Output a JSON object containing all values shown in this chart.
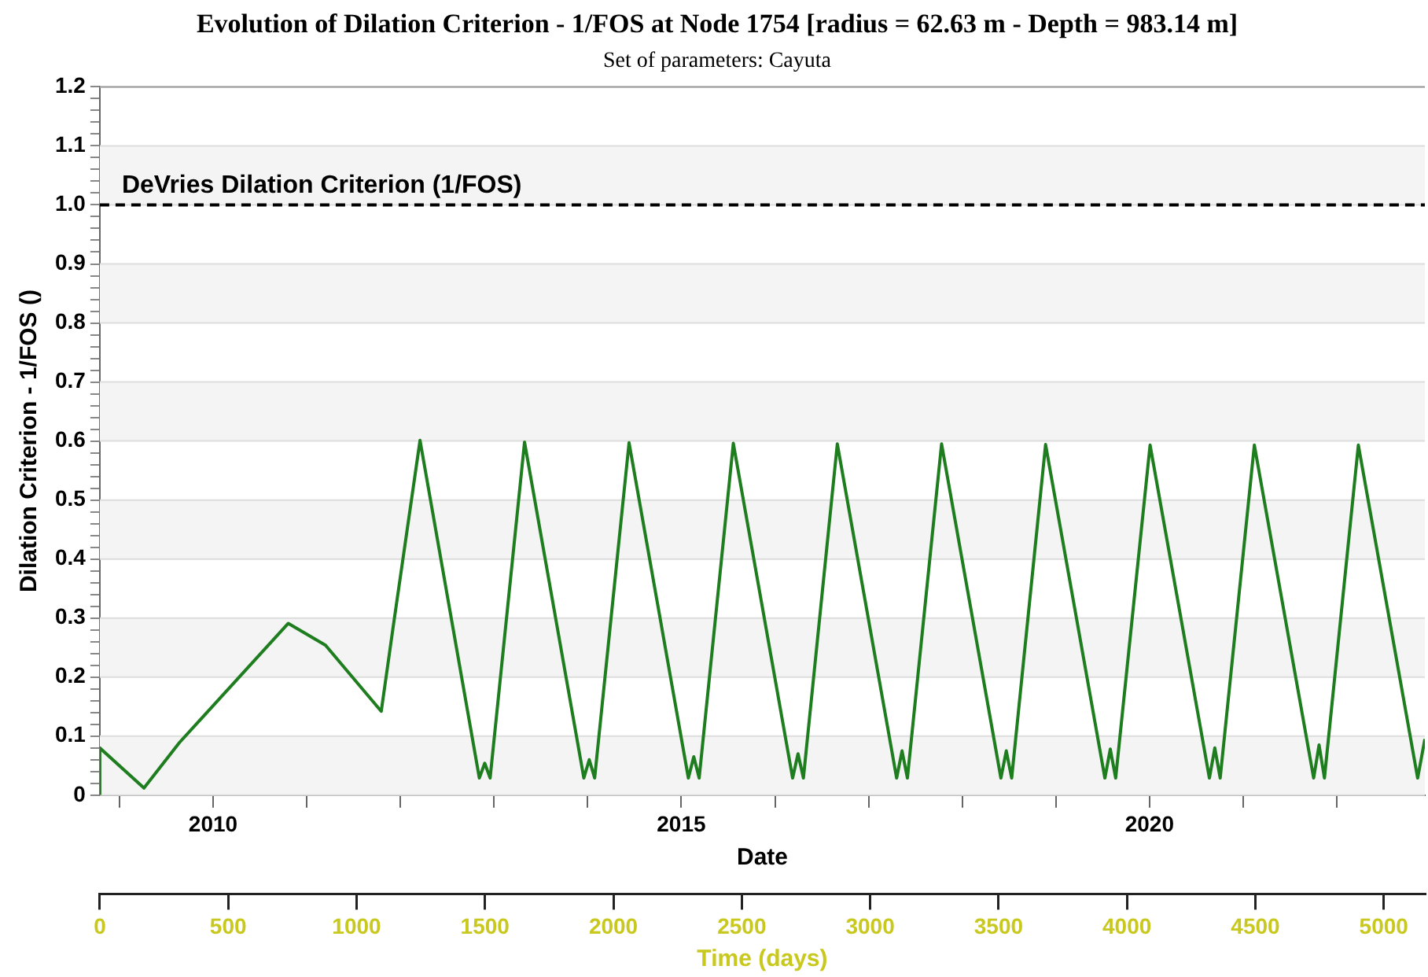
{
  "chart_data": {
    "type": "line",
    "title": "Evolution of Dilation Criterion - 1/FOS at Node 1754 [radius = 62.63 m - Depth = 983.14 m]",
    "subtitle": "Set of parameters: Cayuta",
    "ylabel": "Dilation Criterion - 1/FOS ()",
    "xlabel": "Time (days)",
    "x2label": "Date",
    "xlim": [
      0,
      5160
    ],
    "xticks": [
      0,
      500,
      1000,
      1500,
      2000,
      2500,
      3000,
      3500,
      4000,
      4500,
      5000
    ],
    "x2lim": [
      2008.79,
      2022.94
    ],
    "x2ticks": [
      {
        "value": 2009,
        "label": null
      },
      2010,
      {
        "value": 2011,
        "label": null
      },
      {
        "value": 2012,
        "label": null
      },
      {
        "value": 2013,
        "label": null
      },
      {
        "value": 2014,
        "label": null
      },
      2015,
      {
        "value": 2016,
        "label": null
      },
      {
        "value": 2017,
        "label": null
      },
      {
        "value": 2018,
        "label": null
      },
      {
        "value": 2019,
        "label": null
      },
      2020,
      {
        "value": 2021,
        "label": null
      },
      {
        "value": 2022,
        "label": null
      }
    ],
    "ylim": [
      0,
      1.2
    ],
    "yticks": [
      0,
      {
        "value": 0.02,
        "label": null
      },
      {
        "value": 0.04,
        "label": null
      },
      {
        "value": 0.06,
        "label": null
      },
      {
        "value": 0.08,
        "label": null
      },
      0.1,
      {
        "value": 0.12,
        "label": null
      },
      {
        "value": 0.14,
        "label": null
      },
      {
        "value": 0.16,
        "label": null
      },
      {
        "value": 0.18,
        "label": null
      },
      0.2,
      {
        "value": 0.22,
        "label": null
      },
      {
        "value": 0.24,
        "label": null
      },
      {
        "value": 0.26,
        "label": null
      },
      {
        "value": 0.28,
        "label": null
      },
      0.3,
      {
        "value": 0.32,
        "label": null
      },
      {
        "value": 0.34,
        "label": null
      },
      {
        "value": 0.36,
        "label": null
      },
      {
        "value": 0.38,
        "label": null
      },
      0.4,
      {
        "value": 0.42,
        "label": null
      },
      {
        "value": 0.44,
        "label": null
      },
      {
        "value": 0.46,
        "label": null
      },
      {
        "value": 0.48,
        "label": null
      },
      0.5,
      {
        "value": 0.52,
        "label": null
      },
      {
        "value": 0.54,
        "label": null
      },
      {
        "value": 0.56,
        "label": null
      },
      {
        "value": 0.58,
        "label": null
      },
      0.6,
      {
        "value": 0.62,
        "label": null
      },
      {
        "value": 0.64,
        "label": null
      },
      {
        "value": 0.66,
        "label": null
      },
      {
        "value": 0.68,
        "label": null
      },
      0.7,
      {
        "value": 0.72,
        "label": null
      },
      {
        "value": 0.74,
        "label": null
      },
      {
        "value": 0.76,
        "label": null
      },
      {
        "value": 0.78,
        "label": null
      },
      0.8,
      {
        "value": 0.82,
        "label": null
      },
      {
        "value": 0.84,
        "label": null
      },
      {
        "value": 0.86,
        "label": null
      },
      {
        "value": 0.88,
        "label": null
      },
      0.9,
      {
        "value": 0.92,
        "label": null
      },
      {
        "value": 0.94,
        "label": null
      },
      {
        "value": 0.96,
        "label": null
      },
      {
        "value": 0.98,
        "label": null
      },
      {
        "value": 1,
        "label": "1.0"
      },
      {
        "value": 1.02,
        "label": null
      },
      {
        "value": 1.04,
        "label": null
      },
      {
        "value": 1.06,
        "label": null
      },
      {
        "value": 1.08,
        "label": null
      },
      1.1,
      {
        "value": 1.12,
        "label": null
      },
      {
        "value": 1.14,
        "label": null
      },
      {
        "value": 1.16,
        "label": null
      },
      {
        "value": 1.18,
        "label": null
      },
      1.2
    ],
    "grid": "y",
    "marker": "none",
    "line_style": "solid",
    "ref_lines": [
      {
        "axis": "y",
        "value": 1,
        "label": "DeVries Dilation Criterion (1/FOS)",
        "color": "#000000",
        "line_style": "dashed"
      }
    ],
    "series": [
      {
        "color": "#1e7d1e",
        "x": [
          0,
          0,
          172,
          310,
          734,
          879,
          1096,
          1144,
          1247,
          1478,
          1499,
          1520,
          1654,
          1885,
          1906,
          1927,
          2061,
          2292,
          2313,
          2334,
          2467,
          2698,
          2719,
          2740,
          2872,
          3103,
          3124,
          3145,
          3278,
          3509,
          3530,
          3551,
          3683,
          3914,
          3935,
          3956,
          4090,
          4321,
          4342,
          4363,
          4496,
          4727,
          4748,
          4769,
          4901,
          5132,
          5160
        ],
        "values": [
          0,
          0.08,
          0.012,
          0.089,
          0.291,
          0.254,
          0.142,
          0.29,
          0.601,
          0.029,
          0.054,
          0.029,
          0.598,
          0.029,
          0.06,
          0.029,
          0.597,
          0.029,
          0.065,
          0.029,
          0.596,
          0.029,
          0.07,
          0.029,
          0.595,
          0.029,
          0.075,
          0.029,
          0.595,
          0.029,
          0.075,
          0.029,
          0.594,
          0.029,
          0.078,
          0.029,
          0.593,
          0.029,
          0.08,
          0.029,
          0.593,
          0.029,
          0.085,
          0.029,
          0.593,
          0.029,
          0.095
        ]
      }
    ]
  }
}
